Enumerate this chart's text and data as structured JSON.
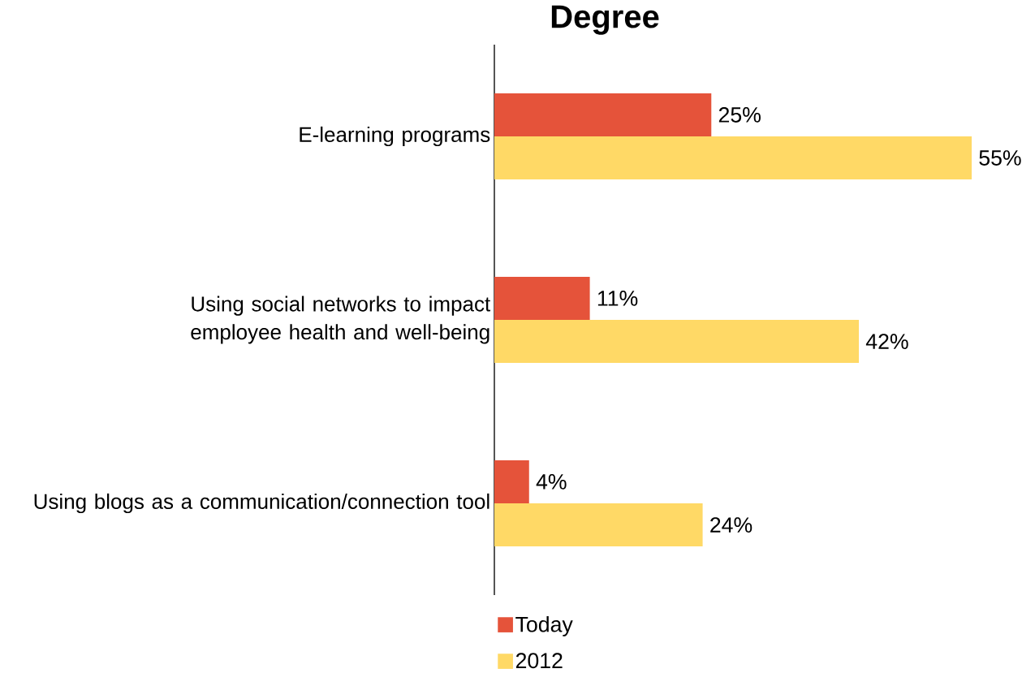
{
  "chart_data": {
    "type": "bar",
    "orientation": "horizontal",
    "title": "Degree",
    "categories": [
      "E-learning programs",
      "Using social networks to impact employee health and well-being",
      "Using blogs as a communication/connection tool"
    ],
    "series": [
      {
        "name": "Today",
        "color": "#e5533a",
        "values": [
          25,
          11,
          4
        ],
        "value_labels": [
          "25%",
          "11%",
          "4%"
        ]
      },
      {
        "name": "2012",
        "color": "#ffd966",
        "values": [
          55,
          42,
          24
        ],
        "value_labels": [
          "55%",
          "42%",
          "24%"
        ]
      }
    ],
    "legend": "bottom"
  }
}
